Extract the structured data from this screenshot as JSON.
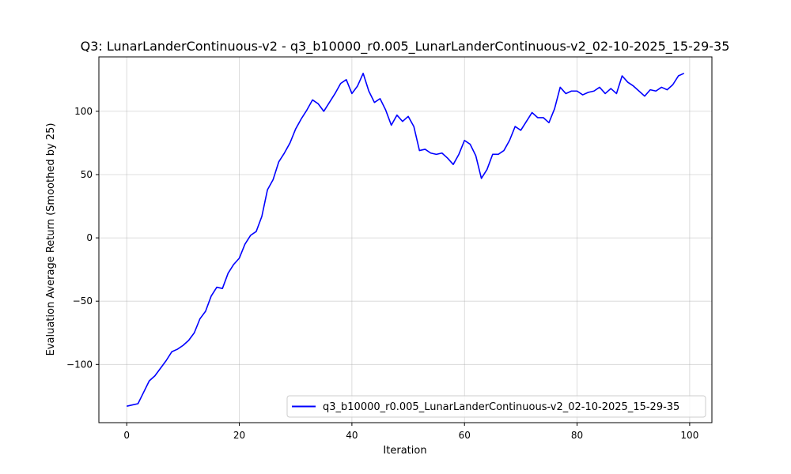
{
  "chart_data": {
    "type": "line",
    "title": "Q3: LunarLanderContinuous-v2 - q3_b10000_r0.005_LunarLanderContinuous-v2_02-10-2025_15-29-35",
    "xlabel": "Iteration",
    "ylabel": "Evaluation Average Return (Smoothed by 25)",
    "xlim": [
      -4.95,
      103.95
    ],
    "ylim": [
      -146,
      143
    ],
    "xticks": [
      0,
      20,
      40,
      60,
      80,
      100
    ],
    "xtick_labels": [
      "0",
      "20",
      "40",
      "60",
      "80",
      "100"
    ],
    "yticks": [
      -100,
      -50,
      0,
      50,
      100
    ],
    "ytick_labels": [
      "−100",
      "−50",
      "0",
      "50",
      "100"
    ],
    "grid": true,
    "legend_position": "lower-right",
    "series": [
      {
        "name": "q3_b10000_r0.005_LunarLanderContinuous-v2_02-10-2025_15-29-35",
        "color": "#0000ff",
        "x": [
          0,
          1,
          2,
          3,
          4,
          5,
          6,
          7,
          8,
          9,
          10,
          11,
          12,
          13,
          14,
          15,
          16,
          17,
          18,
          19,
          20,
          21,
          22,
          23,
          24,
          25,
          26,
          27,
          28,
          29,
          30,
          31,
          32,
          33,
          34,
          35,
          36,
          37,
          38,
          39,
          40,
          41,
          42,
          43,
          44,
          45,
          46,
          47,
          48,
          49,
          50,
          51,
          52,
          53,
          54,
          55,
          56,
          57,
          58,
          59,
          60,
          61,
          62,
          63,
          64,
          65,
          66,
          67,
          68,
          69,
          70,
          71,
          72,
          73,
          74,
          75,
          76,
          77,
          78,
          79,
          80,
          81,
          82,
          83,
          84,
          85,
          86,
          87,
          88,
          89,
          90,
          91,
          92,
          93,
          94,
          95,
          96,
          97,
          98,
          99
        ],
        "y": [
          -133,
          -132,
          -131,
          -122,
          -113,
          -109,
          -103,
          -97,
          -90,
          -88,
          -85,
          -81,
          -75,
          -64,
          -58,
          -46,
          -39,
          -40,
          -28,
          -21,
          -16,
          -5,
          2,
          5,
          17,
          38,
          46,
          60,
          67,
          75,
          86,
          94,
          101,
          109,
          106,
          100,
          107,
          114,
          122,
          125,
          114,
          120,
          130,
          116,
          107,
          110,
          101,
          89,
          97,
          92,
          96,
          88,
          69,
          70,
          67,
          66,
          67,
          63,
          58,
          66,
          77,
          74,
          65,
          47,
          54,
          66,
          66,
          69,
          77,
          88,
          85,
          92,
          99,
          95,
          95,
          91,
          102,
          119,
          114,
          116,
          116,
          113,
          115,
          116,
          119,
          114,
          118,
          114,
          128,
          123,
          120,
          116,
          112,
          117,
          116,
          119,
          117,
          121,
          128,
          130
        ]
      }
    ]
  }
}
